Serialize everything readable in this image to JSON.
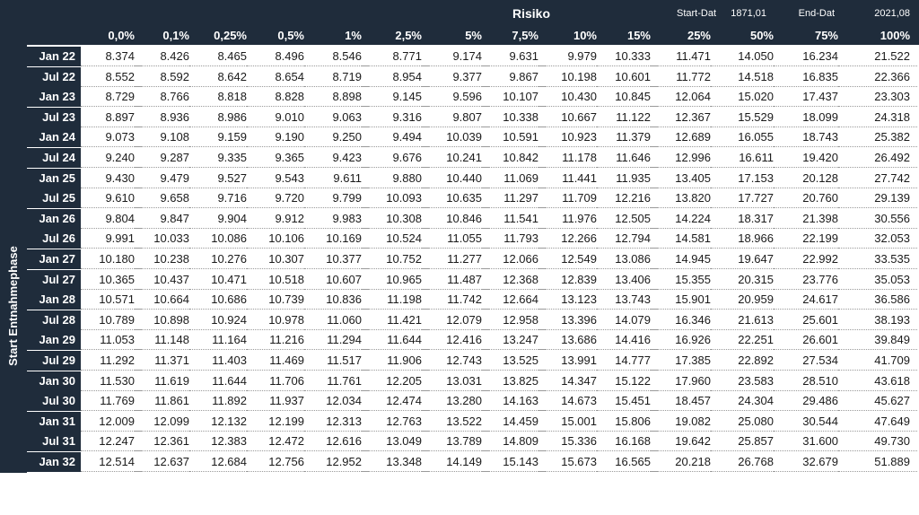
{
  "header": {
    "risk_label": "Risiko",
    "start_label": "Start-Dat",
    "start_value": "1871,01",
    "end_label": "End-Dat",
    "end_value": "2021,08",
    "row_axis_label": "Start Entnahmephase"
  },
  "columns": [
    "0,0%",
    "0,1%",
    "0,25%",
    "0,5%",
    "1%",
    "2,5%",
    "5%",
    "7,5%",
    "10%",
    "15%",
    "25%",
    "50%",
    "75%",
    "100%"
  ],
  "rows": [
    {
      "label": "Jan 22",
      "values": [
        "8.374",
        "8.426",
        "8.465",
        "8.496",
        "8.546",
        "8.771",
        "9.174",
        "9.631",
        "9.979",
        "10.333",
        "11.471",
        "14.050",
        "16.234",
        "21.522"
      ]
    },
    {
      "label": "Jul 22",
      "values": [
        "8.552",
        "8.592",
        "8.642",
        "8.654",
        "8.719",
        "8.954",
        "9.377",
        "9.867",
        "10.198",
        "10.601",
        "11.772",
        "14.518",
        "16.835",
        "22.366"
      ]
    },
    {
      "label": "Jan 23",
      "values": [
        "8.729",
        "8.766",
        "8.818",
        "8.828",
        "8.898",
        "9.145",
        "9.596",
        "10.107",
        "10.430",
        "10.845",
        "12.064",
        "15.020",
        "17.437",
        "23.303"
      ]
    },
    {
      "label": "Jul 23",
      "values": [
        "8.897",
        "8.936",
        "8.986",
        "9.010",
        "9.063",
        "9.316",
        "9.807",
        "10.338",
        "10.667",
        "11.122",
        "12.367",
        "15.529",
        "18.099",
        "24.318"
      ]
    },
    {
      "label": "Jan 24",
      "values": [
        "9.073",
        "9.108",
        "9.159",
        "9.190",
        "9.250",
        "9.494",
        "10.039",
        "10.591",
        "10.923",
        "11.379",
        "12.689",
        "16.055",
        "18.743",
        "25.382"
      ]
    },
    {
      "label": "Jul 24",
      "values": [
        "9.240",
        "9.287",
        "9.335",
        "9.365",
        "9.423",
        "9.676",
        "10.241",
        "10.842",
        "11.178",
        "11.646",
        "12.996",
        "16.611",
        "19.420",
        "26.492"
      ]
    },
    {
      "label": "Jan 25",
      "values": [
        "9.430",
        "9.479",
        "9.527",
        "9.543",
        "9.611",
        "9.880",
        "10.440",
        "11.069",
        "11.441",
        "11.935",
        "13.405",
        "17.153",
        "20.128",
        "27.742"
      ]
    },
    {
      "label": "Jul 25",
      "values": [
        "9.610",
        "9.658",
        "9.716",
        "9.720",
        "9.799",
        "10.093",
        "10.635",
        "11.297",
        "11.709",
        "12.216",
        "13.820",
        "17.727",
        "20.760",
        "29.139"
      ]
    },
    {
      "label": "Jan 26",
      "values": [
        "9.804",
        "9.847",
        "9.904",
        "9.912",
        "9.983",
        "10.308",
        "10.846",
        "11.541",
        "11.976",
        "12.505",
        "14.224",
        "18.317",
        "21.398",
        "30.556"
      ]
    },
    {
      "label": "Jul 26",
      "values": [
        "9.991",
        "10.033",
        "10.086",
        "10.106",
        "10.169",
        "10.524",
        "11.055",
        "11.793",
        "12.266",
        "12.794",
        "14.581",
        "18.966",
        "22.199",
        "32.053"
      ]
    },
    {
      "label": "Jan 27",
      "values": [
        "10.180",
        "10.238",
        "10.276",
        "10.307",
        "10.377",
        "10.752",
        "11.277",
        "12.066",
        "12.549",
        "13.086",
        "14.945",
        "19.647",
        "22.992",
        "33.535"
      ]
    },
    {
      "label": "Jul 27",
      "values": [
        "10.365",
        "10.437",
        "10.471",
        "10.518",
        "10.607",
        "10.965",
        "11.487",
        "12.368",
        "12.839",
        "13.406",
        "15.355",
        "20.315",
        "23.776",
        "35.053"
      ]
    },
    {
      "label": "Jan 28",
      "values": [
        "10.571",
        "10.664",
        "10.686",
        "10.739",
        "10.836",
        "11.198",
        "11.742",
        "12.664",
        "13.123",
        "13.743",
        "15.901",
        "20.959",
        "24.617",
        "36.586"
      ]
    },
    {
      "label": "Jul 28",
      "values": [
        "10.789",
        "10.898",
        "10.924",
        "10.978",
        "11.060",
        "11.421",
        "12.079",
        "12.958",
        "13.396",
        "14.079",
        "16.346",
        "21.613",
        "25.601",
        "38.193"
      ]
    },
    {
      "label": "Jan 29",
      "values": [
        "11.053",
        "11.148",
        "11.164",
        "11.216",
        "11.294",
        "11.644",
        "12.416",
        "13.247",
        "13.686",
        "14.416",
        "16.926",
        "22.251",
        "26.601",
        "39.849"
      ]
    },
    {
      "label": "Jul 29",
      "values": [
        "11.292",
        "11.371",
        "11.403",
        "11.469",
        "11.517",
        "11.906",
        "12.743",
        "13.525",
        "13.991",
        "14.777",
        "17.385",
        "22.892",
        "27.534",
        "41.709"
      ]
    },
    {
      "label": "Jan 30",
      "values": [
        "11.530",
        "11.619",
        "11.644",
        "11.706",
        "11.761",
        "12.205",
        "13.031",
        "13.825",
        "14.347",
        "15.122",
        "17.960",
        "23.583",
        "28.510",
        "43.618"
      ]
    },
    {
      "label": "Jul 30",
      "values": [
        "11.769",
        "11.861",
        "11.892",
        "11.937",
        "12.034",
        "12.474",
        "13.280",
        "14.163",
        "14.673",
        "15.451",
        "18.457",
        "24.304",
        "29.486",
        "45.627"
      ]
    },
    {
      "label": "Jan 31",
      "values": [
        "12.009",
        "12.099",
        "12.132",
        "12.199",
        "12.313",
        "12.763",
        "13.522",
        "14.459",
        "15.001",
        "15.806",
        "19.082",
        "25.080",
        "30.544",
        "47.649"
      ]
    },
    {
      "label": "Jul 31",
      "values": [
        "12.247",
        "12.361",
        "12.383",
        "12.472",
        "12.616",
        "13.049",
        "13.789",
        "14.809",
        "15.336",
        "16.168",
        "19.642",
        "25.857",
        "31.600",
        "49.730"
      ]
    },
    {
      "label": "Jan 32",
      "values": [
        "12.514",
        "12.637",
        "12.684",
        "12.756",
        "12.952",
        "13.348",
        "14.149",
        "15.143",
        "15.673",
        "16.565",
        "20.218",
        "26.768",
        "32.679",
        "51.889"
      ]
    }
  ]
}
